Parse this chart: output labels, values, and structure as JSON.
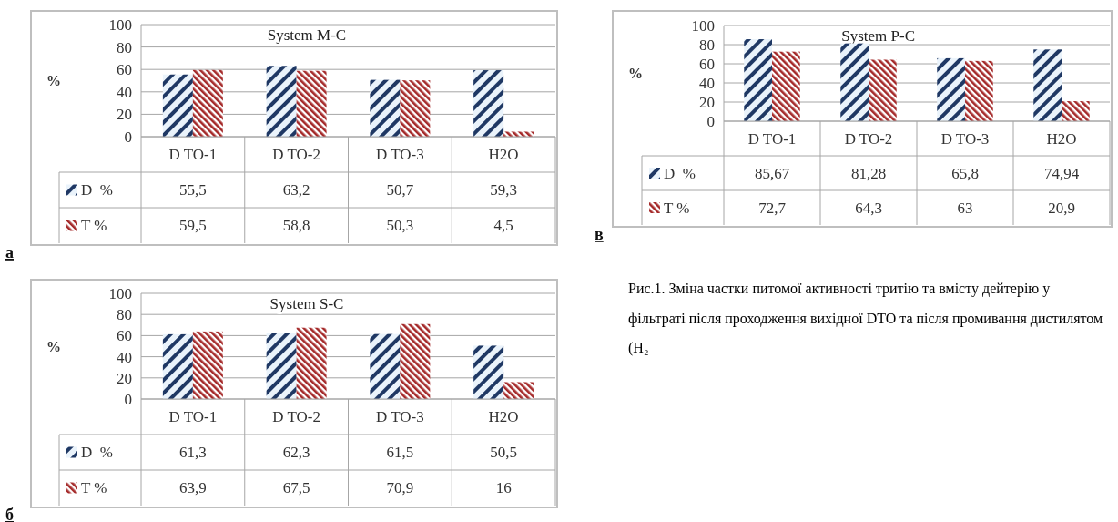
{
  "chart_data": [
    {
      "type": "bar",
      "title": "System M-C",
      "ylabel": "%",
      "categories": [
        "D TO-1",
        "D TO-2",
        "D TO-3",
        "H2O"
      ],
      "ylim": [
        0,
        100
      ],
      "yticks": [
        0,
        20,
        40,
        60,
        80,
        100
      ],
      "grid": "y",
      "legend": "bottom",
      "annotations": [
        "а"
      ],
      "series": [
        {
          "name": "D  %",
          "color": "#1f3864",
          "values": [
            55.5,
            63.2,
            50.7,
            59.3
          ],
          "value_labels": [
            "55,5",
            "63,2",
            "50,7",
            "59,3"
          ]
        },
        {
          "name": "T %",
          "color": "#a52a2a",
          "values": [
            59.5,
            58.8,
            50.3,
            4.5
          ],
          "value_labels": [
            "59,5",
            "58,8",
            "50,3",
            "4,5"
          ]
        }
      ]
    },
    {
      "type": "bar",
      "title": "System P-C",
      "ylabel": "%",
      "categories": [
        "D TO-1",
        "D TO-2",
        "D TO-3",
        "H2O"
      ],
      "ylim": [
        0,
        100
      ],
      "yticks": [
        0,
        20,
        40,
        60,
        80,
        100
      ],
      "grid": "y",
      "legend": "bottom",
      "annotations": [
        "в"
      ],
      "series": [
        {
          "name": "D  %",
          "color": "#1f3864",
          "values": [
            85.67,
            81.28,
            65.8,
            74.94
          ],
          "value_labels": [
            "85,67",
            "81,28",
            "65,8",
            "74,94"
          ]
        },
        {
          "name": "T %",
          "color": "#a52a2a",
          "values": [
            72.7,
            64.3,
            63,
            20.9
          ],
          "value_labels": [
            "72,7",
            "64,3",
            "63",
            "20,9"
          ]
        }
      ]
    },
    {
      "type": "bar",
      "title": "System S-C",
      "ylabel": "%",
      "categories": [
        "D TO-1",
        "D TO-2",
        "D TO-3",
        "H2O"
      ],
      "ylim": [
        0,
        100
      ],
      "yticks": [
        0,
        20,
        40,
        60,
        80,
        100
      ],
      "grid": "y",
      "legend": "bottom",
      "annotations": [
        "б"
      ],
      "series": [
        {
          "name": "D  %",
          "color": "#1f3864",
          "values": [
            61.3,
            62.3,
            61.5,
            50.5
          ],
          "value_labels": [
            "61,3",
            "62,3",
            "61,5",
            "50,5"
          ]
        },
        {
          "name": "T %",
          "color": "#a52a2a",
          "values": [
            63.9,
            67.5,
            70.9,
            16
          ],
          "value_labels": [
            "63,9",
            "67,5",
            "70,9",
            "16"
          ]
        }
      ]
    },
    {
      "type": "other",
      "annotations": [
        "Рис.1. Зміна частки питомої активності тритію та вмісту дейтерію у фільтраті після проходження вихідної DTO та після промивання дистилятом (H₂"
      ]
    }
  ]
}
